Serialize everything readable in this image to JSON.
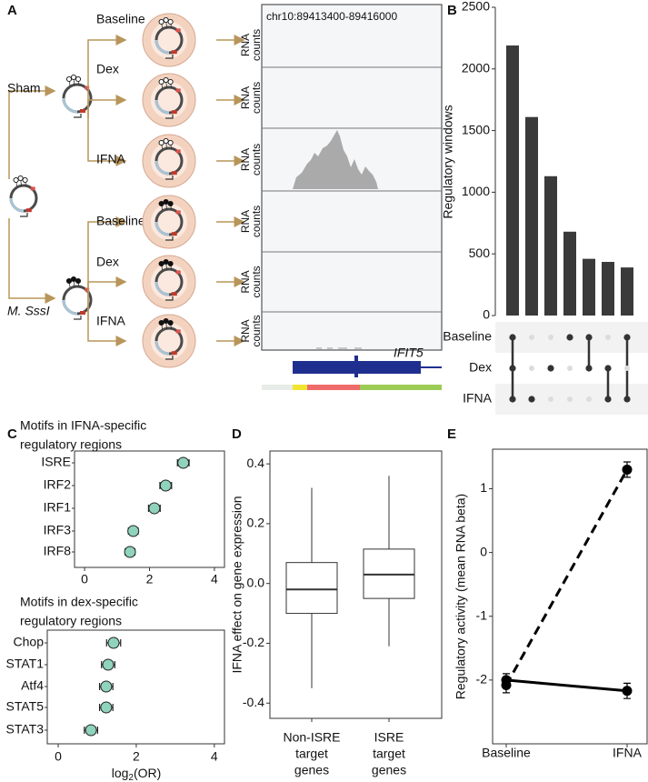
{
  "panel_labels": [
    "A",
    "B",
    "C",
    "D",
    "E"
  ],
  "diagram": {
    "treatments": [
      "Sham",
      "M. SssI"
    ],
    "conditions": [
      "Baseline",
      "Dex",
      "IFNA",
      "Baseline",
      "Dex",
      "IFNA"
    ],
    "track_label": [
      "RNA",
      "counts"
    ],
    "locus": "chr10:89413400-89416000",
    "gene": "IFIT5"
  },
  "chart_data": [
    {
      "type": "upset",
      "y_label": "Regulatory windows",
      "values": [
        2190,
        1610,
        1130,
        680,
        460,
        435,
        390
      ],
      "color": "#3a3a3a",
      "ylim": [
        0,
        2500
      ],
      "yticks": [
        0,
        500,
        1000,
        1500,
        2000,
        2500
      ],
      "sets": [
        "Baseline",
        "Dex",
        "IFNA"
      ],
      "membership": [
        [
          1,
          1,
          1
        ],
        [
          0,
          0,
          1
        ],
        [
          0,
          1,
          0
        ],
        [
          1,
          0,
          0
        ],
        [
          1,
          1,
          0
        ],
        [
          0,
          1,
          1
        ],
        [
          1,
          0,
          1
        ]
      ]
    },
    {
      "type": "dot",
      "title": [
        "Motifs in IFNA-specific",
        "regulatory regions"
      ],
      "categories": [
        "ISRE",
        "IRF2",
        "IRF1",
        "IRF3",
        "IRF8"
      ],
      "values": [
        3.04,
        2.5,
        2.15,
        1.5,
        1.4
      ],
      "errors": [
        0.18,
        0.18,
        0.18,
        0.15,
        0.15
      ],
      "color": "#8fd3bd",
      "xlim": [
        -0.31,
        4.31
      ],
      "xticks": [
        0,
        2,
        4
      ]
    },
    {
      "type": "dot",
      "title": [
        "Motifs in dex-specific",
        "regulatory regions"
      ],
      "categories": [
        "Chop",
        "STAT1",
        "Atf4",
        "STAT5",
        "STAT3"
      ],
      "values": [
        1.42,
        1.28,
        1.23,
        1.23,
        0.84
      ],
      "errors": [
        0.18,
        0.17,
        0.17,
        0.17,
        0.17
      ],
      "color": "#8fd3bd",
      "xlim": [
        -0.28,
        4.26
      ],
      "xticks": [
        0,
        2,
        4
      ],
      "x_label": [
        "log",
        "2",
        "(OR)"
      ]
    },
    {
      "type": "box",
      "y_label": "IFNA effect on gene expression",
      "categories": [
        [
          "Non-ISRE",
          "target",
          "genes"
        ],
        [
          "ISRE",
          "target",
          "genes"
        ]
      ],
      "whisker_low": [
        -0.35,
        -0.21
      ],
      "q1": [
        -0.1,
        -0.05
      ],
      "median": [
        -0.02,
        0.03
      ],
      "q3": [
        0.07,
        0.115
      ],
      "whisker_high": [
        0.32,
        0.36
      ],
      "ylim": [
        -0.451,
        0.443
      ],
      "yticks": [
        -0.4,
        -0.2,
        {
          "value": 0,
          "label": "0.0"
        },
        0.2,
        0.4
      ]
    },
    {
      "type": "line",
      "y_label": "Regulatory activity (mean RNA beta)",
      "categories": [
        "Baseline",
        "IFNA"
      ],
      "series": [
        {
          "values": [
            -2.08,
            1.3
          ],
          "errors": [
            0.12,
            0.12
          ],
          "dash": true,
          "color": "#000000"
        },
        {
          "values": [
            -2.0,
            -2.17
          ],
          "errors": [
            0.1,
            0.12
          ],
          "dash": false,
          "color": "#000000"
        }
      ],
      "ylim": [
        -3.0,
        1.62
      ],
      "yticks": [
        -2,
        -1,
        0,
        1
      ]
    }
  ]
}
